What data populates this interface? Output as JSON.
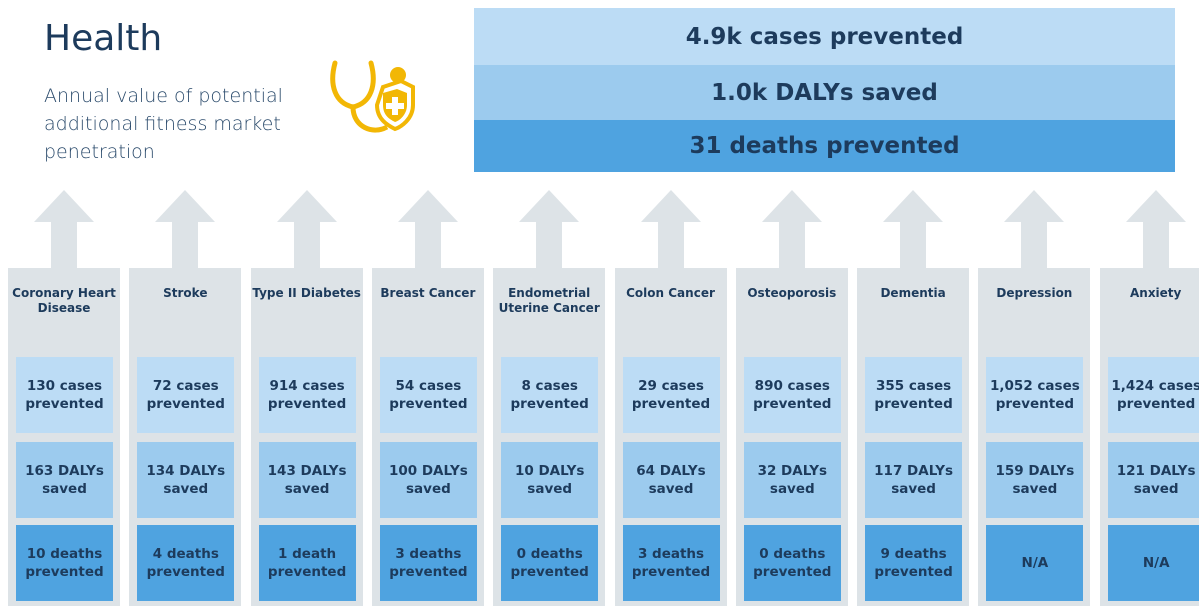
{
  "header": {
    "title": "Health",
    "subtitle": "Annual value of potential additional fitness market penetration"
  },
  "summary": [
    "4.9k cases prevented",
    "1.0k DALYs saved",
    "31 deaths prevented"
  ],
  "columns": [
    {
      "label": "Coronary Heart Disease",
      "cases": "130 cases prevented",
      "dalys": "163 DALYs saved",
      "deaths": "10 deaths prevented"
    },
    {
      "label": "Stroke",
      "cases": "72 cases prevented",
      "dalys": "134 DALYs saved",
      "deaths": "4 deaths prevented"
    },
    {
      "label": "Type II Diabetes",
      "cases": "914 cases prevented",
      "dalys": "143 DALYs saved",
      "deaths": "1 death prevented"
    },
    {
      "label": "Breast Cancer",
      "cases": "54 cases prevented",
      "dalys": "100 DALYs saved",
      "deaths": "3 deaths prevented"
    },
    {
      "label": "Endometrial Uterine Cancer",
      "cases": "8 cases prevented",
      "dalys": "10 DALYs saved",
      "deaths": "0 deaths prevented"
    },
    {
      "label": "Colon Cancer",
      "cases": "29 cases prevented",
      "dalys": "64 DALYs saved",
      "deaths": "3 deaths prevented"
    },
    {
      "label": "Osteoporosis",
      "cases": "890 cases prevented",
      "dalys": "32 DALYs saved",
      "deaths": "0 deaths prevented"
    },
    {
      "label": "Dementia",
      "cases": "355 cases prevented",
      "dalys": "117 DALYs saved",
      "deaths": "9 deaths prevented"
    },
    {
      "label": "Depression",
      "cases": "1,052 cases prevented",
      "dalys": "159 DALYs saved",
      "deaths": "N/A"
    },
    {
      "label": "Anxiety",
      "cases": "1,424 cases prevented",
      "dalys": "121 DALYs saved",
      "deaths": "N/A"
    }
  ]
}
